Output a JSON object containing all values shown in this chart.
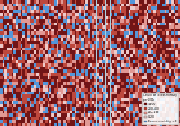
{
  "title": "Cálculo de Excess mortality\nper 100k",
  "legend_labels": [
    ">400",
    "200-400",
    "20s-200",
    "0-20",
    "Excess mortality < 0"
  ],
  "legend_colors": [
    "#6b0000",
    "#c0392b",
    "#e8928c",
    "#f5cac8",
    "#4a90d9"
  ],
  "background_ocean": "#a8cfe0",
  "background_land_mexico": "#d4c9a8",
  "fig_bg": "#a8cfe0",
  "map_xlim": [
    -125,
    -65
  ],
  "map_ylim": [
    24,
    50
  ]
}
